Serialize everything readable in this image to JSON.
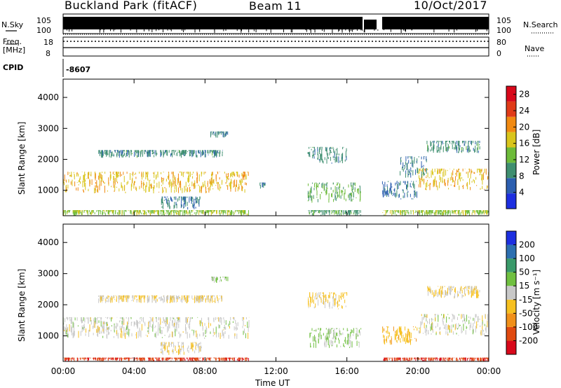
{
  "header": {
    "station": "Buckland Park (fitACF)",
    "beam": "Beam 11",
    "date": "10/Oct/2017"
  },
  "param_panel": {
    "nsky_label": "N.Sky",
    "nsky_ticks": [
      "10^5",
      "10^0"
    ],
    "nsearch_label": "N.Search",
    "nsearch_ticks": [
      "10^5",
      "10^0"
    ],
    "freq_label_1": "Freq.",
    "freq_label_2": "[MHz]",
    "freq_ticks": [
      "18",
      "8"
    ],
    "nave_label": "Nave",
    "nave_ticks": [
      "80",
      "0"
    ],
    "cpid_label": "CPID",
    "cpid_value": "-8607"
  },
  "chart_data": [
    {
      "type": "heatmap",
      "title": "",
      "xlabel": "Time UT",
      "ylabel": "Slant Range [km]",
      "x_ticks": [
        "00:00",
        "04:00",
        "08:00",
        "12:00",
        "16:00",
        "20:00",
        "00:00"
      ],
      "xlim_hours": [
        0,
        24
      ],
      "y_ticks": [
        1000,
        2000,
        3000,
        4000
      ],
      "ylim": [
        180,
        4590
      ],
      "colorbar": {
        "label": "Power [dB]",
        "ticks": [
          "4",
          "8",
          "12",
          "16",
          "20",
          "24",
          "28"
        ],
        "range": [
          0,
          30
        ],
        "colors": [
          "#1d2fe0",
          "#2c5fb0",
          "#3f8f70",
          "#6dbb3a",
          "#d9c51c",
          "#f18a12",
          "#e03b18",
          "#d8081a"
        ]
      },
      "echo_bands": [
        {
          "t": [
            0.0,
            10.5
          ],
          "r": [
            900,
            1600
          ],
          "level": 18
        },
        {
          "t": [
            0.0,
            10.5
          ],
          "r": [
            180,
            360
          ],
          "level": 14
        },
        {
          "t": [
            2.0,
            9.0
          ],
          "r": [
            2050,
            2300
          ],
          "level": 9
        },
        {
          "t": [
            8.3,
            9.3
          ],
          "r": [
            2700,
            2900
          ],
          "level": 8
        },
        {
          "t": [
            5.5,
            7.8
          ],
          "r": [
            380,
            800
          ],
          "level": 8
        },
        {
          "t": [
            13.8,
            16.8
          ],
          "r": [
            600,
            1250
          ],
          "level": 12
        },
        {
          "t": [
            13.8,
            16.8
          ],
          "r": [
            180,
            360
          ],
          "level": 10
        },
        {
          "t": [
            13.8,
            16.0
          ],
          "r": [
            1850,
            2400
          ],
          "level": 9
        },
        {
          "t": [
            18.0,
            20.0
          ],
          "r": [
            700,
            1300
          ],
          "level": 7
        },
        {
          "t": [
            18.0,
            24.0
          ],
          "r": [
            180,
            360
          ],
          "level": 14
        },
        {
          "t": [
            20.0,
            24.0
          ],
          "r": [
            1000,
            1700
          ],
          "level": 18
        },
        {
          "t": [
            19.0,
            20.5
          ],
          "r": [
            1400,
            2100
          ],
          "level": 8
        },
        {
          "t": [
            20.5,
            23.5
          ],
          "r": [
            2200,
            2600
          ],
          "level": 9
        },
        {
          "t": [
            11.0,
            11.4
          ],
          "r": [
            1050,
            1250
          ],
          "level": 7
        }
      ]
    },
    {
      "type": "heatmap",
      "title": "",
      "xlabel": "Time UT",
      "ylabel": "Slant Range [km]",
      "x_ticks": [
        "00:00",
        "04:00",
        "08:00",
        "12:00",
        "16:00",
        "20:00",
        "00:00"
      ],
      "xlim_hours": [
        0,
        24
      ],
      "y_ticks": [
        1000,
        2000,
        3000,
        4000
      ],
      "ylim": [
        180,
        4590
      ],
      "colorbar": {
        "label": "Velocity [m s⁻¹]",
        "ticks": [
          "200",
          "100",
          "50",
          "15",
          "-15",
          "-50",
          "-100",
          "-200"
        ],
        "range": [
          -250,
          250
        ],
        "colors": [
          "#d8081a",
          "#e04a10",
          "#f0901a",
          "#f6c020",
          "#c8c8c8",
          "#70c040",
          "#3a9a6a",
          "#2c6fb0",
          "#1d2fe0"
        ]
      },
      "echo_bands": [
        {
          "t": [
            0.0,
            10.5
          ],
          "r": [
            900,
            1600
          ],
          "level": 0
        },
        {
          "t": [
            0.0,
            10.5
          ],
          "r": [
            180,
            300
          ],
          "level": -180
        },
        {
          "t": [
            2.0,
            9.0
          ],
          "r": [
            2050,
            2300
          ],
          "level": -30
        },
        {
          "t": [
            8.3,
            9.3
          ],
          "r": [
            2700,
            2900
          ],
          "level": 40
        },
        {
          "t": [
            5.5,
            7.8
          ],
          "r": [
            380,
            800
          ],
          "level": -20
        },
        {
          "t": [
            13.8,
            16.8
          ],
          "r": [
            600,
            1250
          ],
          "level": 35
        },
        {
          "t": [
            13.8,
            16.0
          ],
          "r": [
            1850,
            2400
          ],
          "level": -40
        },
        {
          "t": [
            18.0,
            20.0
          ],
          "r": [
            700,
            1300
          ],
          "level": -70
        },
        {
          "t": [
            18.0,
            24.0
          ],
          "r": [
            180,
            300
          ],
          "level": -180
        },
        {
          "t": [
            20.0,
            24.0
          ],
          "r": [
            1000,
            1700
          ],
          "level": 0
        },
        {
          "t": [
            20.5,
            23.5
          ],
          "r": [
            2200,
            2600
          ],
          "level": -30
        }
      ]
    }
  ]
}
